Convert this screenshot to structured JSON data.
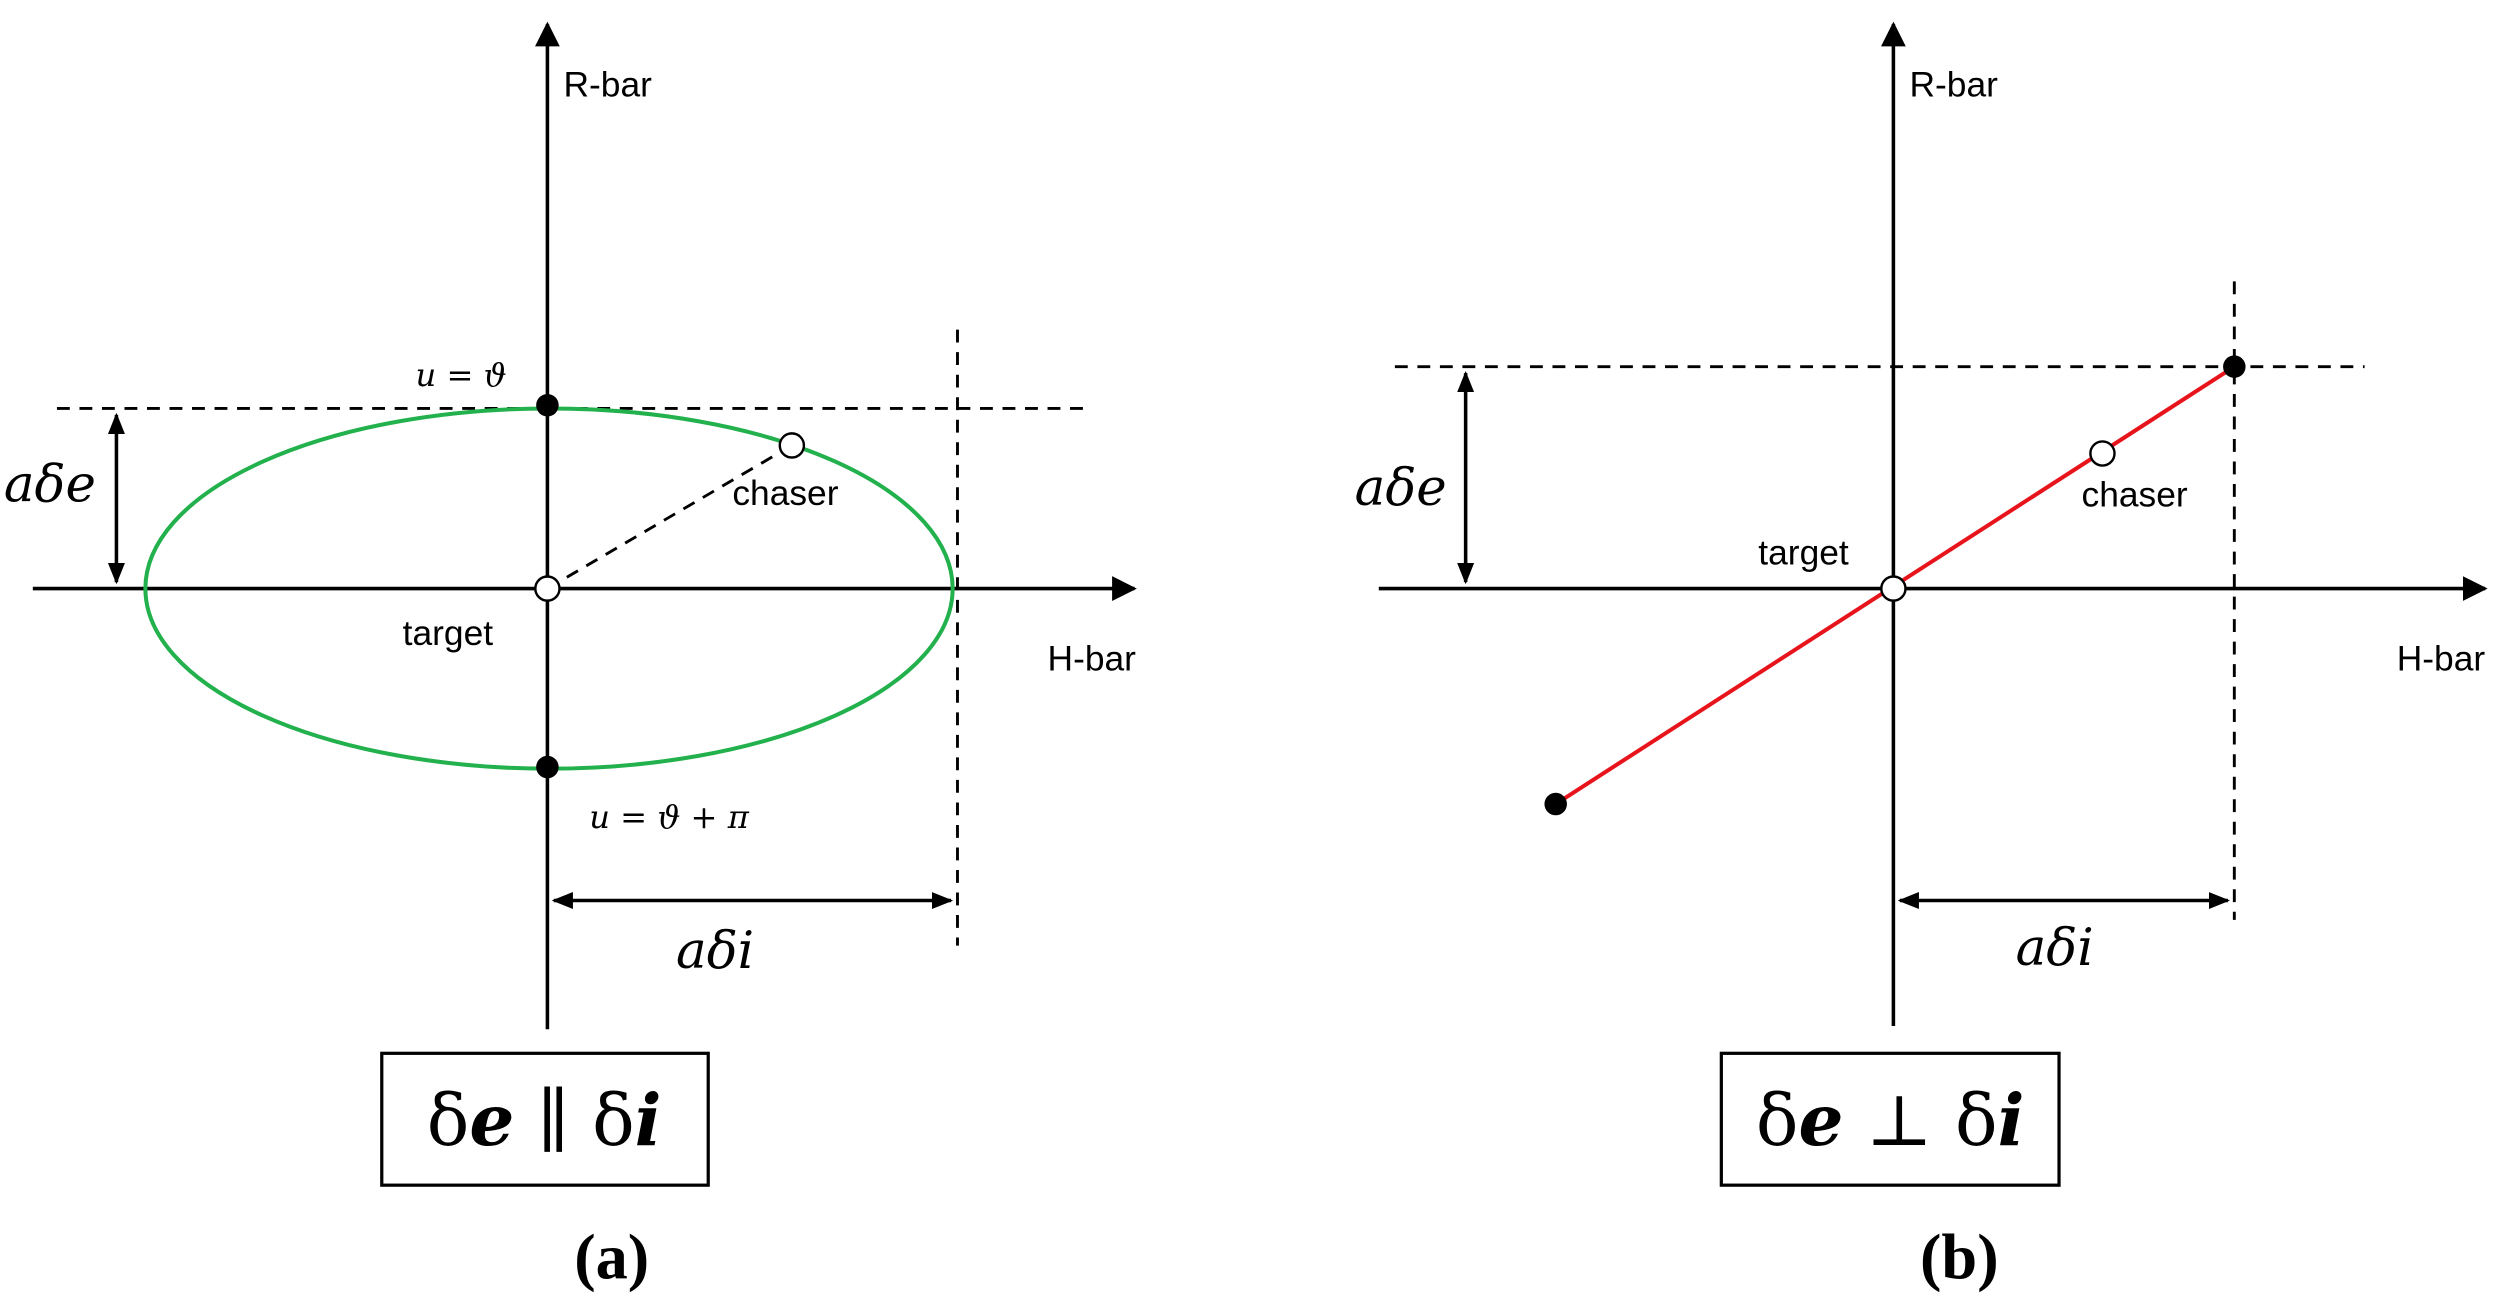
{
  "panels": [
    {
      "r_axis": "R-bar",
      "h_axis": "H-bar",
      "top_point": "u = ϑ",
      "bottom_point": "u = ϑ + π",
      "radial_dim": "aδe",
      "cross_dim": "aδi",
      "chaser": "chaser",
      "target": "target",
      "box_label": [
        "δ",
        "e",
        " ∥ δ",
        "i"
      ],
      "caption": "(a)"
    },
    {
      "r_axis": "R-bar",
      "h_axis": "H-bar",
      "radial_dim": "aδe",
      "cross_dim": "aδi",
      "chaser": "chaser",
      "target": "target",
      "box_label": [
        "δ",
        "e",
        " ⊥ δ",
        "i"
      ],
      "caption": "(b)"
    }
  ]
}
